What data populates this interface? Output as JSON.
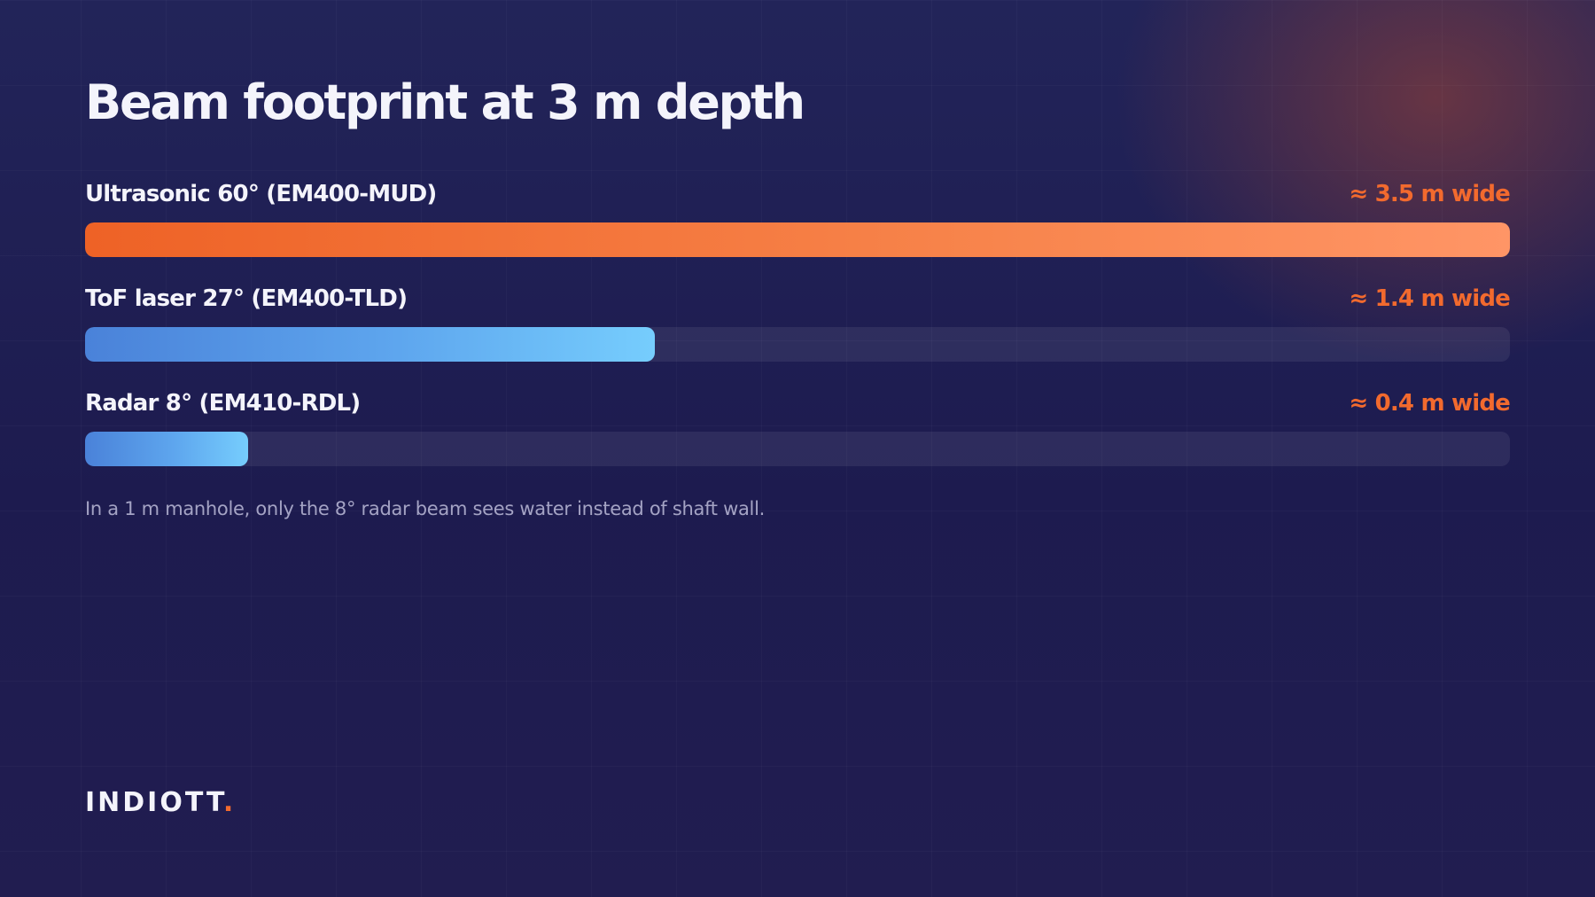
{
  "chart_data": {
    "type": "bar",
    "orientation": "horizontal",
    "title": "Beam footprint at 3 m depth",
    "categories": [
      "Ultrasonic 60° (EM400-MUD)",
      "ToF laser 27° (EM400-TLD)",
      "Radar 8° (EM410-RDL)"
    ],
    "values": [
      3.5,
      1.4,
      0.4
    ],
    "value_labels": [
      "≈ 3.5 m wide",
      "≈ 1.4 m wide",
      "≈ 0.4 m wide"
    ],
    "unit": "m",
    "xlim": [
      0,
      3.5
    ],
    "grid": false,
    "legend": "none",
    "highlight_color": "#f26a2e",
    "bar_colors": [
      "#f26a2e",
      "#5ea6ee",
      "#5ea6ee"
    ]
  },
  "footnote": "In a 1 m manhole, only the 8° radar beam sees water instead of shaft wall.",
  "brand": {
    "name": "INDIOTT",
    "dot": "."
  }
}
